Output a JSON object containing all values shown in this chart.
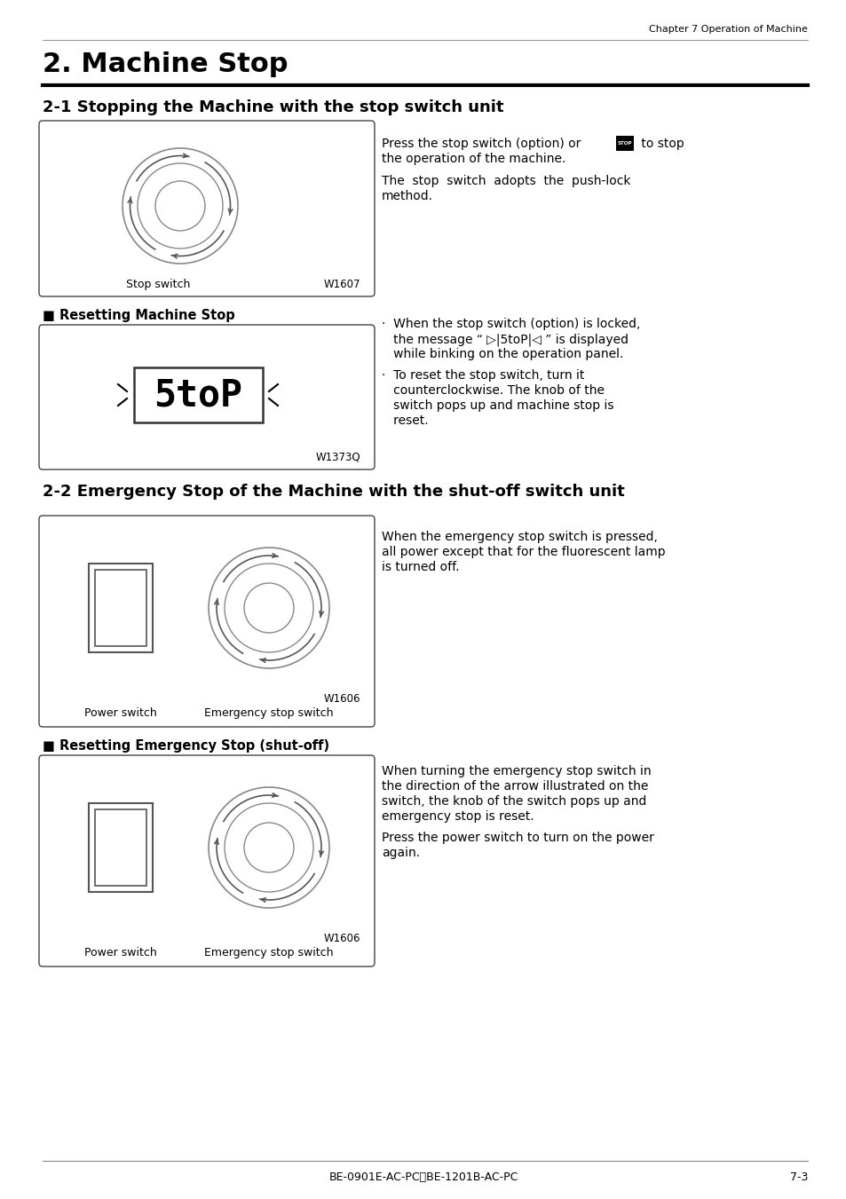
{
  "page_header": "Chapter 7 Operation of Machine",
  "title": "2. Machine Stop",
  "section1_title": "2-1 Stopping the Machine with the stop switch unit",
  "section2_title": "2-2 Emergency Stop of the Machine with the shut-off switch unit",
  "subsection1_title": "■ Resetting Machine Stop",
  "subsection2_title": "■ Resetting Emergency Stop (shut-off)",
  "box1_label_left": "Stop switch",
  "box1_label_right": "W1607",
  "box2_label_right": "W1373Q",
  "box3_label_left": "Power switch",
  "box3_label_right_top": "Emergency stop switch",
  "box3_label_right_bottom": "W1606",
  "box4_label_left": "Power switch",
  "box4_label_right_top": "Emergency stop switch",
  "box4_label_right_bottom": "W1606",
  "footer_text": "BE-0901E-AC-PC・BE-1201B-AC-PC",
  "footer_page": "7-3",
  "bg_color": "#ffffff",
  "text_color": "#000000"
}
